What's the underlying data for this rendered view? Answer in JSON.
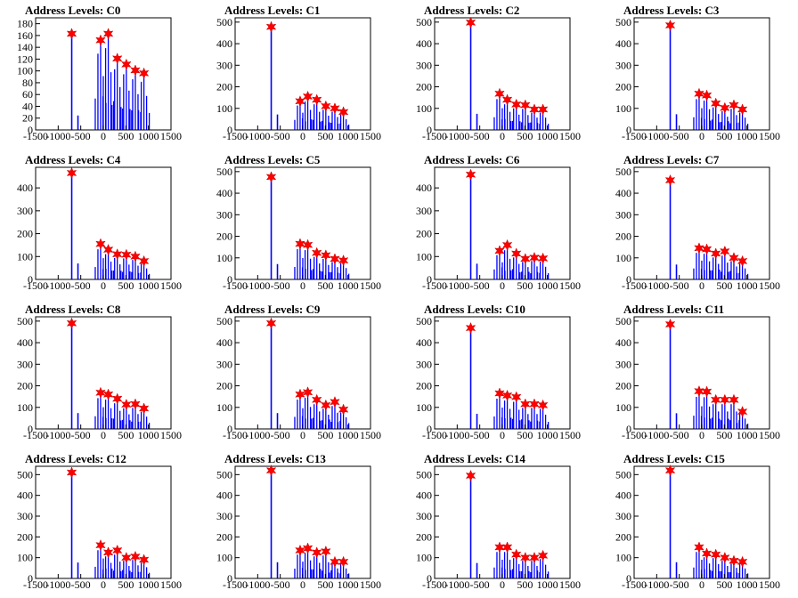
{
  "colors": {
    "histogram": "#0000ff",
    "marker": "#ff0000",
    "axis": "#000000",
    "background": "#ffffff"
  },
  "chart_data": [
    {
      "type": "bar",
      "title": "Address Levels: C0",
      "xlim": [
        -1500,
        1500
      ],
      "ylim": [
        0,
        190
      ],
      "yticks": [
        0,
        20,
        40,
        60,
        80,
        100,
        120,
        140,
        160,
        180
      ],
      "xticks": [
        -1500,
        -1000,
        -500,
        0,
        500,
        1000,
        1500
      ],
      "xtick_labels": [
        "-1500",
        "-1000",
        "-500",
        "0",
        "500",
        "1000",
        "1500"
      ],
      "peaks": [
        {
          "x": -700,
          "y": 163
        },
        {
          "x": -60,
          "y": 152
        },
        {
          "x": 110,
          "y": 163
        },
        {
          "x": 310,
          "y": 121
        },
        {
          "x": 510,
          "y": 111
        },
        {
          "x": 710,
          "y": 101
        },
        {
          "x": 900,
          "y": 96
        }
      ]
    },
    {
      "type": "bar",
      "title": "Address Levels: C1",
      "xlim": [
        -1500,
        1500
      ],
      "ylim": [
        0,
        520
      ],
      "yticks": [
        0,
        100,
        200,
        300,
        400,
        500
      ],
      "xticks": [
        -1500,
        -1000,
        -500,
        0,
        500,
        1000,
        1500
      ],
      "xtick_labels": [
        "-1500",
        "-1000",
        "-500",
        "0",
        "500",
        "1000",
        "1500"
      ],
      "peaks": [
        {
          "x": -700,
          "y": 478
        },
        {
          "x": -60,
          "y": 133
        },
        {
          "x": 110,
          "y": 155
        },
        {
          "x": 310,
          "y": 140
        },
        {
          "x": 510,
          "y": 110
        },
        {
          "x": 710,
          "y": 100
        },
        {
          "x": 900,
          "y": 83
        }
      ]
    },
    {
      "type": "bar",
      "title": "Address Levels: C2",
      "xlim": [
        -1500,
        1500
      ],
      "ylim": [
        0,
        520
      ],
      "yticks": [
        0,
        100,
        200,
        300,
        400,
        500
      ],
      "xticks": [
        -1500,
        -1000,
        -500,
        0,
        500,
        1000,
        1500
      ],
      "xtick_labels": [
        "-1500",
        "-1000",
        "-500",
        "0",
        "500",
        "1000",
        "1500"
      ],
      "peaks": [
        {
          "x": -700,
          "y": 498
        },
        {
          "x": -60,
          "y": 168
        },
        {
          "x": 110,
          "y": 140
        },
        {
          "x": 310,
          "y": 118
        },
        {
          "x": 510,
          "y": 115
        },
        {
          "x": 710,
          "y": 95
        },
        {
          "x": 900,
          "y": 95
        }
      ]
    },
    {
      "type": "bar",
      "title": "Address Levels: C3",
      "xlim": [
        -1500,
        1500
      ],
      "ylim": [
        0,
        520
      ],
      "yticks": [
        0,
        100,
        200,
        300,
        400,
        500
      ],
      "xticks": [
        -1500,
        -1000,
        -500,
        0,
        500,
        1000,
        1500
      ],
      "xtick_labels": [
        "-1500",
        "-1000",
        "-500",
        "0",
        "500",
        "1000",
        "1500"
      ],
      "peaks": [
        {
          "x": -700,
          "y": 485
        },
        {
          "x": -60,
          "y": 168
        },
        {
          "x": 110,
          "y": 160
        },
        {
          "x": 310,
          "y": 123
        },
        {
          "x": 510,
          "y": 102
        },
        {
          "x": 710,
          "y": 115
        },
        {
          "x": 900,
          "y": 95
        }
      ]
    },
    {
      "type": "bar",
      "title": "Address Levels: C4",
      "xlim": [
        -1500,
        1500
      ],
      "ylim": [
        0,
        490
      ],
      "yticks": [
        0,
        100,
        200,
        300,
        400
      ],
      "xticks": [
        -1500,
        -1000,
        -500,
        0,
        500,
        1000,
        1500
      ],
      "xtick_labels": [
        "-1500",
        "-1000",
        "-500",
        "0",
        "500",
        "1000",
        "1500"
      ],
      "peaks": [
        {
          "x": -700,
          "y": 465
        },
        {
          "x": -60,
          "y": 155
        },
        {
          "x": 110,
          "y": 130
        },
        {
          "x": 310,
          "y": 110
        },
        {
          "x": 510,
          "y": 108
        },
        {
          "x": 710,
          "y": 100
        },
        {
          "x": 900,
          "y": 80
        }
      ]
    },
    {
      "type": "bar",
      "title": "Address Levels: C5",
      "xlim": [
        -1500,
        1500
      ],
      "ylim": [
        0,
        520
      ],
      "yticks": [
        0,
        100,
        200,
        300,
        400,
        500
      ],
      "xticks": [
        -1500,
        -1000,
        -500,
        0,
        500,
        1000,
        1500
      ],
      "xtick_labels": [
        "-1500",
        "-1000",
        "-500",
        "0",
        "500",
        "1000",
        "1500"
      ],
      "peaks": [
        {
          "x": -700,
          "y": 475
        },
        {
          "x": -60,
          "y": 165
        },
        {
          "x": 110,
          "y": 160
        },
        {
          "x": 310,
          "y": 123
        },
        {
          "x": 510,
          "y": 112
        },
        {
          "x": 710,
          "y": 95
        },
        {
          "x": 900,
          "y": 88
        }
      ]
    },
    {
      "type": "bar",
      "title": "Address Levels: C6",
      "xlim": [
        -1500,
        1500
      ],
      "ylim": [
        0,
        490
      ],
      "yticks": [
        0,
        100,
        200,
        300,
        400
      ],
      "xticks": [
        -1500,
        -1000,
        -500,
        0,
        500,
        1000,
        1500
      ],
      "xtick_labels": [
        "-1500",
        "-1000",
        "-500",
        "0",
        "500",
        "1000",
        "1500"
      ],
      "peaks": [
        {
          "x": -700,
          "y": 458
        },
        {
          "x": -60,
          "y": 125
        },
        {
          "x": 110,
          "y": 150
        },
        {
          "x": 310,
          "y": 113
        },
        {
          "x": 510,
          "y": 90
        },
        {
          "x": 710,
          "y": 95
        },
        {
          "x": 900,
          "y": 92
        }
      ]
    },
    {
      "type": "bar",
      "title": "Address Levels: C7",
      "xlim": [
        -1500,
        1500
      ],
      "ylim": [
        0,
        520
      ],
      "yticks": [
        0,
        100,
        200,
        300,
        400,
        500
      ],
      "xticks": [
        -1500,
        -1000,
        -500,
        0,
        500,
        1000,
        1500
      ],
      "xtick_labels": [
        "-1500",
        "-1000",
        "-500",
        "0",
        "500",
        "1000",
        "1500"
      ],
      "peaks": [
        {
          "x": -700,
          "y": 460
        },
        {
          "x": -60,
          "y": 145
        },
        {
          "x": 110,
          "y": 140
        },
        {
          "x": 310,
          "y": 120
        },
        {
          "x": 510,
          "y": 130
        },
        {
          "x": 710,
          "y": 100
        },
        {
          "x": 900,
          "y": 85
        }
      ]
    },
    {
      "type": "bar",
      "title": "Address Levels: C8",
      "xlim": [
        -1500,
        1500
      ],
      "ylim": [
        0,
        520
      ],
      "yticks": [
        0,
        100,
        200,
        300,
        400,
        500
      ],
      "xticks": [
        -1500,
        -1000,
        -500,
        0,
        500,
        1000,
        1500
      ],
      "xtick_labels": [
        "-1500",
        "-1000",
        "-500",
        "0",
        "500",
        "1000",
        "1500"
      ],
      "peaks": [
        {
          "x": -700,
          "y": 490
        },
        {
          "x": -60,
          "y": 168
        },
        {
          "x": 110,
          "y": 160
        },
        {
          "x": 310,
          "y": 140
        },
        {
          "x": 510,
          "y": 113
        },
        {
          "x": 710,
          "y": 115
        },
        {
          "x": 900,
          "y": 95
        }
      ]
    },
    {
      "type": "bar",
      "title": "Address Levels: C9",
      "xlim": [
        -1500,
        1500
      ],
      "ylim": [
        0,
        520
      ],
      "yticks": [
        0,
        100,
        200,
        300,
        400,
        500
      ],
      "xticks": [
        -1500,
        -1000,
        -500,
        0,
        500,
        1000,
        1500
      ],
      "xtick_labels": [
        "-1500",
        "-1000",
        "-500",
        "0",
        "500",
        "1000",
        "1500"
      ],
      "peaks": [
        {
          "x": -700,
          "y": 490
        },
        {
          "x": -60,
          "y": 160
        },
        {
          "x": 110,
          "y": 170
        },
        {
          "x": 310,
          "y": 135
        },
        {
          "x": 510,
          "y": 110
        },
        {
          "x": 710,
          "y": 125
        },
        {
          "x": 900,
          "y": 90
        }
      ]
    },
    {
      "type": "bar",
      "title": "Address Levels: C10",
      "xlim": [
        -1500,
        1500
      ],
      "ylim": [
        0,
        520
      ],
      "yticks": [
        0,
        100,
        200,
        300,
        400,
        500
      ],
      "xticks": [
        -1500,
        -1000,
        -500,
        0,
        500,
        1000,
        1500
      ],
      "xtick_labels": [
        "-1500",
        "-1000",
        "-500",
        "0",
        "500",
        "1000",
        "1500"
      ],
      "peaks": [
        {
          "x": -700,
          "y": 468
        },
        {
          "x": -60,
          "y": 165
        },
        {
          "x": 110,
          "y": 155
        },
        {
          "x": 310,
          "y": 148
        },
        {
          "x": 510,
          "y": 115
        },
        {
          "x": 710,
          "y": 115
        },
        {
          "x": 900,
          "y": 110
        }
      ]
    },
    {
      "type": "bar",
      "title": "Address Levels: C11",
      "xlim": [
        -1500,
        1500
      ],
      "ylim": [
        0,
        520
      ],
      "yticks": [
        0,
        100,
        200,
        300,
        400,
        500
      ],
      "xticks": [
        -1500,
        -1000,
        -500,
        0,
        500,
        1000,
        1500
      ],
      "xtick_labels": [
        "-1500",
        "-1000",
        "-500",
        "0",
        "500",
        "1000",
        "1500"
      ],
      "peaks": [
        {
          "x": -700,
          "y": 485
        },
        {
          "x": -60,
          "y": 175
        },
        {
          "x": 110,
          "y": 173
        },
        {
          "x": 310,
          "y": 135
        },
        {
          "x": 510,
          "y": 135
        },
        {
          "x": 710,
          "y": 135
        },
        {
          "x": 900,
          "y": 80
        }
      ]
    },
    {
      "type": "bar",
      "title": "Address Levels: C12",
      "xlim": [
        -1500,
        1500
      ],
      "ylim": [
        0,
        540
      ],
      "yticks": [
        0,
        100,
        200,
        300,
        400,
        500
      ],
      "xticks": [
        -1500,
        -1000,
        -500,
        0,
        500,
        1000,
        1500
      ],
      "xtick_labels": [
        "-1500",
        "-1000",
        "-500",
        "0",
        "500",
        "1000",
        "1500"
      ],
      "peaks": [
        {
          "x": -700,
          "y": 510
        },
        {
          "x": -60,
          "y": 160
        },
        {
          "x": 110,
          "y": 125
        },
        {
          "x": 310,
          "y": 135
        },
        {
          "x": 510,
          "y": 100
        },
        {
          "x": 710,
          "y": 105
        },
        {
          "x": 900,
          "y": 90
        }
      ]
    },
    {
      "type": "bar",
      "title": "Address Levels: C13",
      "xlim": [
        -1500,
        1500
      ],
      "ylim": [
        0,
        540
      ],
      "yticks": [
        0,
        100,
        200,
        300,
        400,
        500
      ],
      "xticks": [
        -1500,
        -1000,
        -500,
        0,
        500,
        1000,
        1500
      ],
      "xtick_labels": [
        "-1500",
        "-1000",
        "-500",
        "0",
        "500",
        "1000",
        "1500"
      ],
      "peaks": [
        {
          "x": -700,
          "y": 520
        },
        {
          "x": -60,
          "y": 135
        },
        {
          "x": 110,
          "y": 145
        },
        {
          "x": 310,
          "y": 125
        },
        {
          "x": 510,
          "y": 130
        },
        {
          "x": 710,
          "y": 80
        },
        {
          "x": 900,
          "y": 80
        }
      ]
    },
    {
      "type": "bar",
      "title": "Address Levels: C14",
      "xlim": [
        -1500,
        1500
      ],
      "ylim": [
        0,
        540
      ],
      "yticks": [
        0,
        100,
        200,
        300,
        400,
        500
      ],
      "xticks": [
        -1500,
        -1000,
        -500,
        0,
        500,
        1000,
        1500
      ],
      "xtick_labels": [
        "-1500",
        "-1000",
        "-500",
        "0",
        "500",
        "1000",
        "1500"
      ],
      "peaks": [
        {
          "x": -700,
          "y": 495
        },
        {
          "x": -60,
          "y": 150
        },
        {
          "x": 110,
          "y": 150
        },
        {
          "x": 310,
          "y": 115
        },
        {
          "x": 510,
          "y": 100
        },
        {
          "x": 710,
          "y": 100
        },
        {
          "x": 900,
          "y": 110
        }
      ]
    },
    {
      "type": "bar",
      "title": "Address Levels: C15",
      "xlim": [
        -1500,
        1500
      ],
      "ylim": [
        0,
        540
      ],
      "yticks": [
        0,
        100,
        200,
        300,
        400,
        500
      ],
      "xticks": [
        -1500,
        -1000,
        -500,
        0,
        500,
        1000,
        1500
      ],
      "xtick_labels": [
        "-1500",
        "-1000",
        "-500",
        "0",
        "500",
        "1000",
        "1500"
      ],
      "peaks": [
        {
          "x": -700,
          "y": 520
        },
        {
          "x": -60,
          "y": 150
        },
        {
          "x": 110,
          "y": 120
        },
        {
          "x": 310,
          "y": 115
        },
        {
          "x": 510,
          "y": 100
        },
        {
          "x": 710,
          "y": 85
        },
        {
          "x": 900,
          "y": 80
        }
      ]
    }
  ]
}
